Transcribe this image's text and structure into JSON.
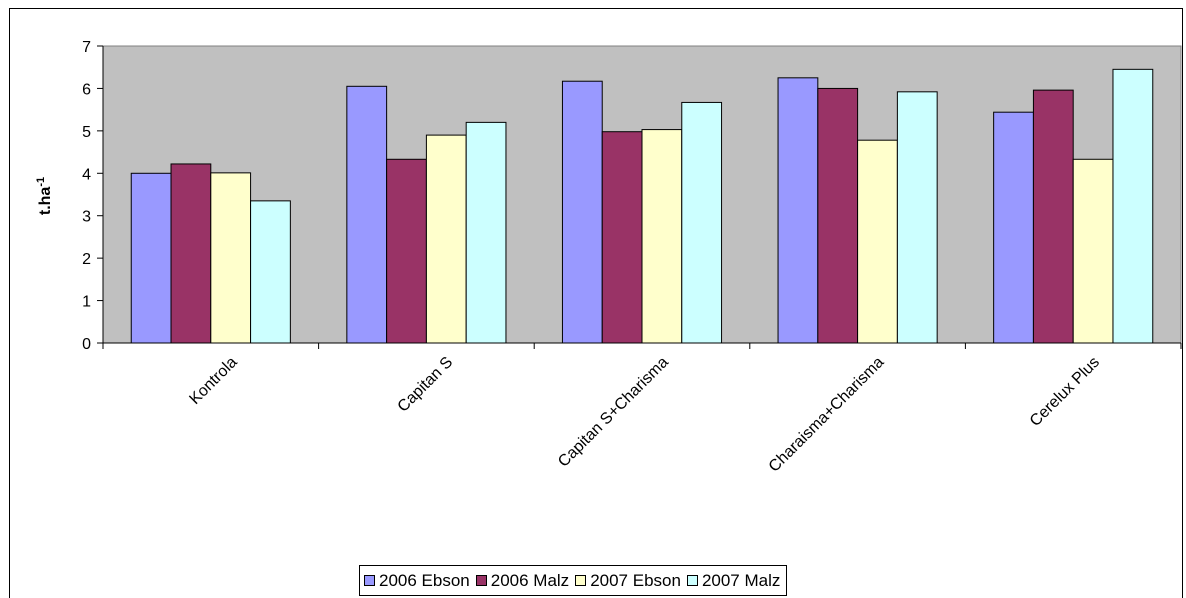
{
  "chart_data": {
    "type": "bar",
    "title": "",
    "xlabel": "",
    "ylabel": "t.ha",
    "ylabel_sup": "-1",
    "ylim": [
      0,
      7
    ],
    "yticks": [
      "0",
      "1",
      "2",
      "3",
      "4",
      "5",
      "6",
      "7"
    ],
    "grid": false,
    "legend_position": "bottom",
    "plot_background": "#c0c0c0",
    "categories": [
      "Kontrola",
      "Capitan S",
      "Capitan S+Charisma",
      "Charaisma+Charisma",
      "Cerelux Plus"
    ],
    "series": [
      {
        "name": "2006 Ebson",
        "color": "#9999ff",
        "values": [
          4.0,
          6.05,
          6.17,
          6.25,
          5.44
        ]
      },
      {
        "name": "2006 Malz",
        "color": "#993366",
        "values": [
          4.22,
          4.33,
          4.98,
          6.0,
          5.96
        ]
      },
      {
        "name": "2007 Ebson",
        "color": "#ffffcc",
        "values": [
          4.01,
          4.9,
          5.03,
          4.78,
          4.33
        ]
      },
      {
        "name": "2007 Malz",
        "color": "#ccffff",
        "values": [
          3.35,
          5.2,
          5.67,
          5.92,
          6.45
        ]
      }
    ]
  }
}
